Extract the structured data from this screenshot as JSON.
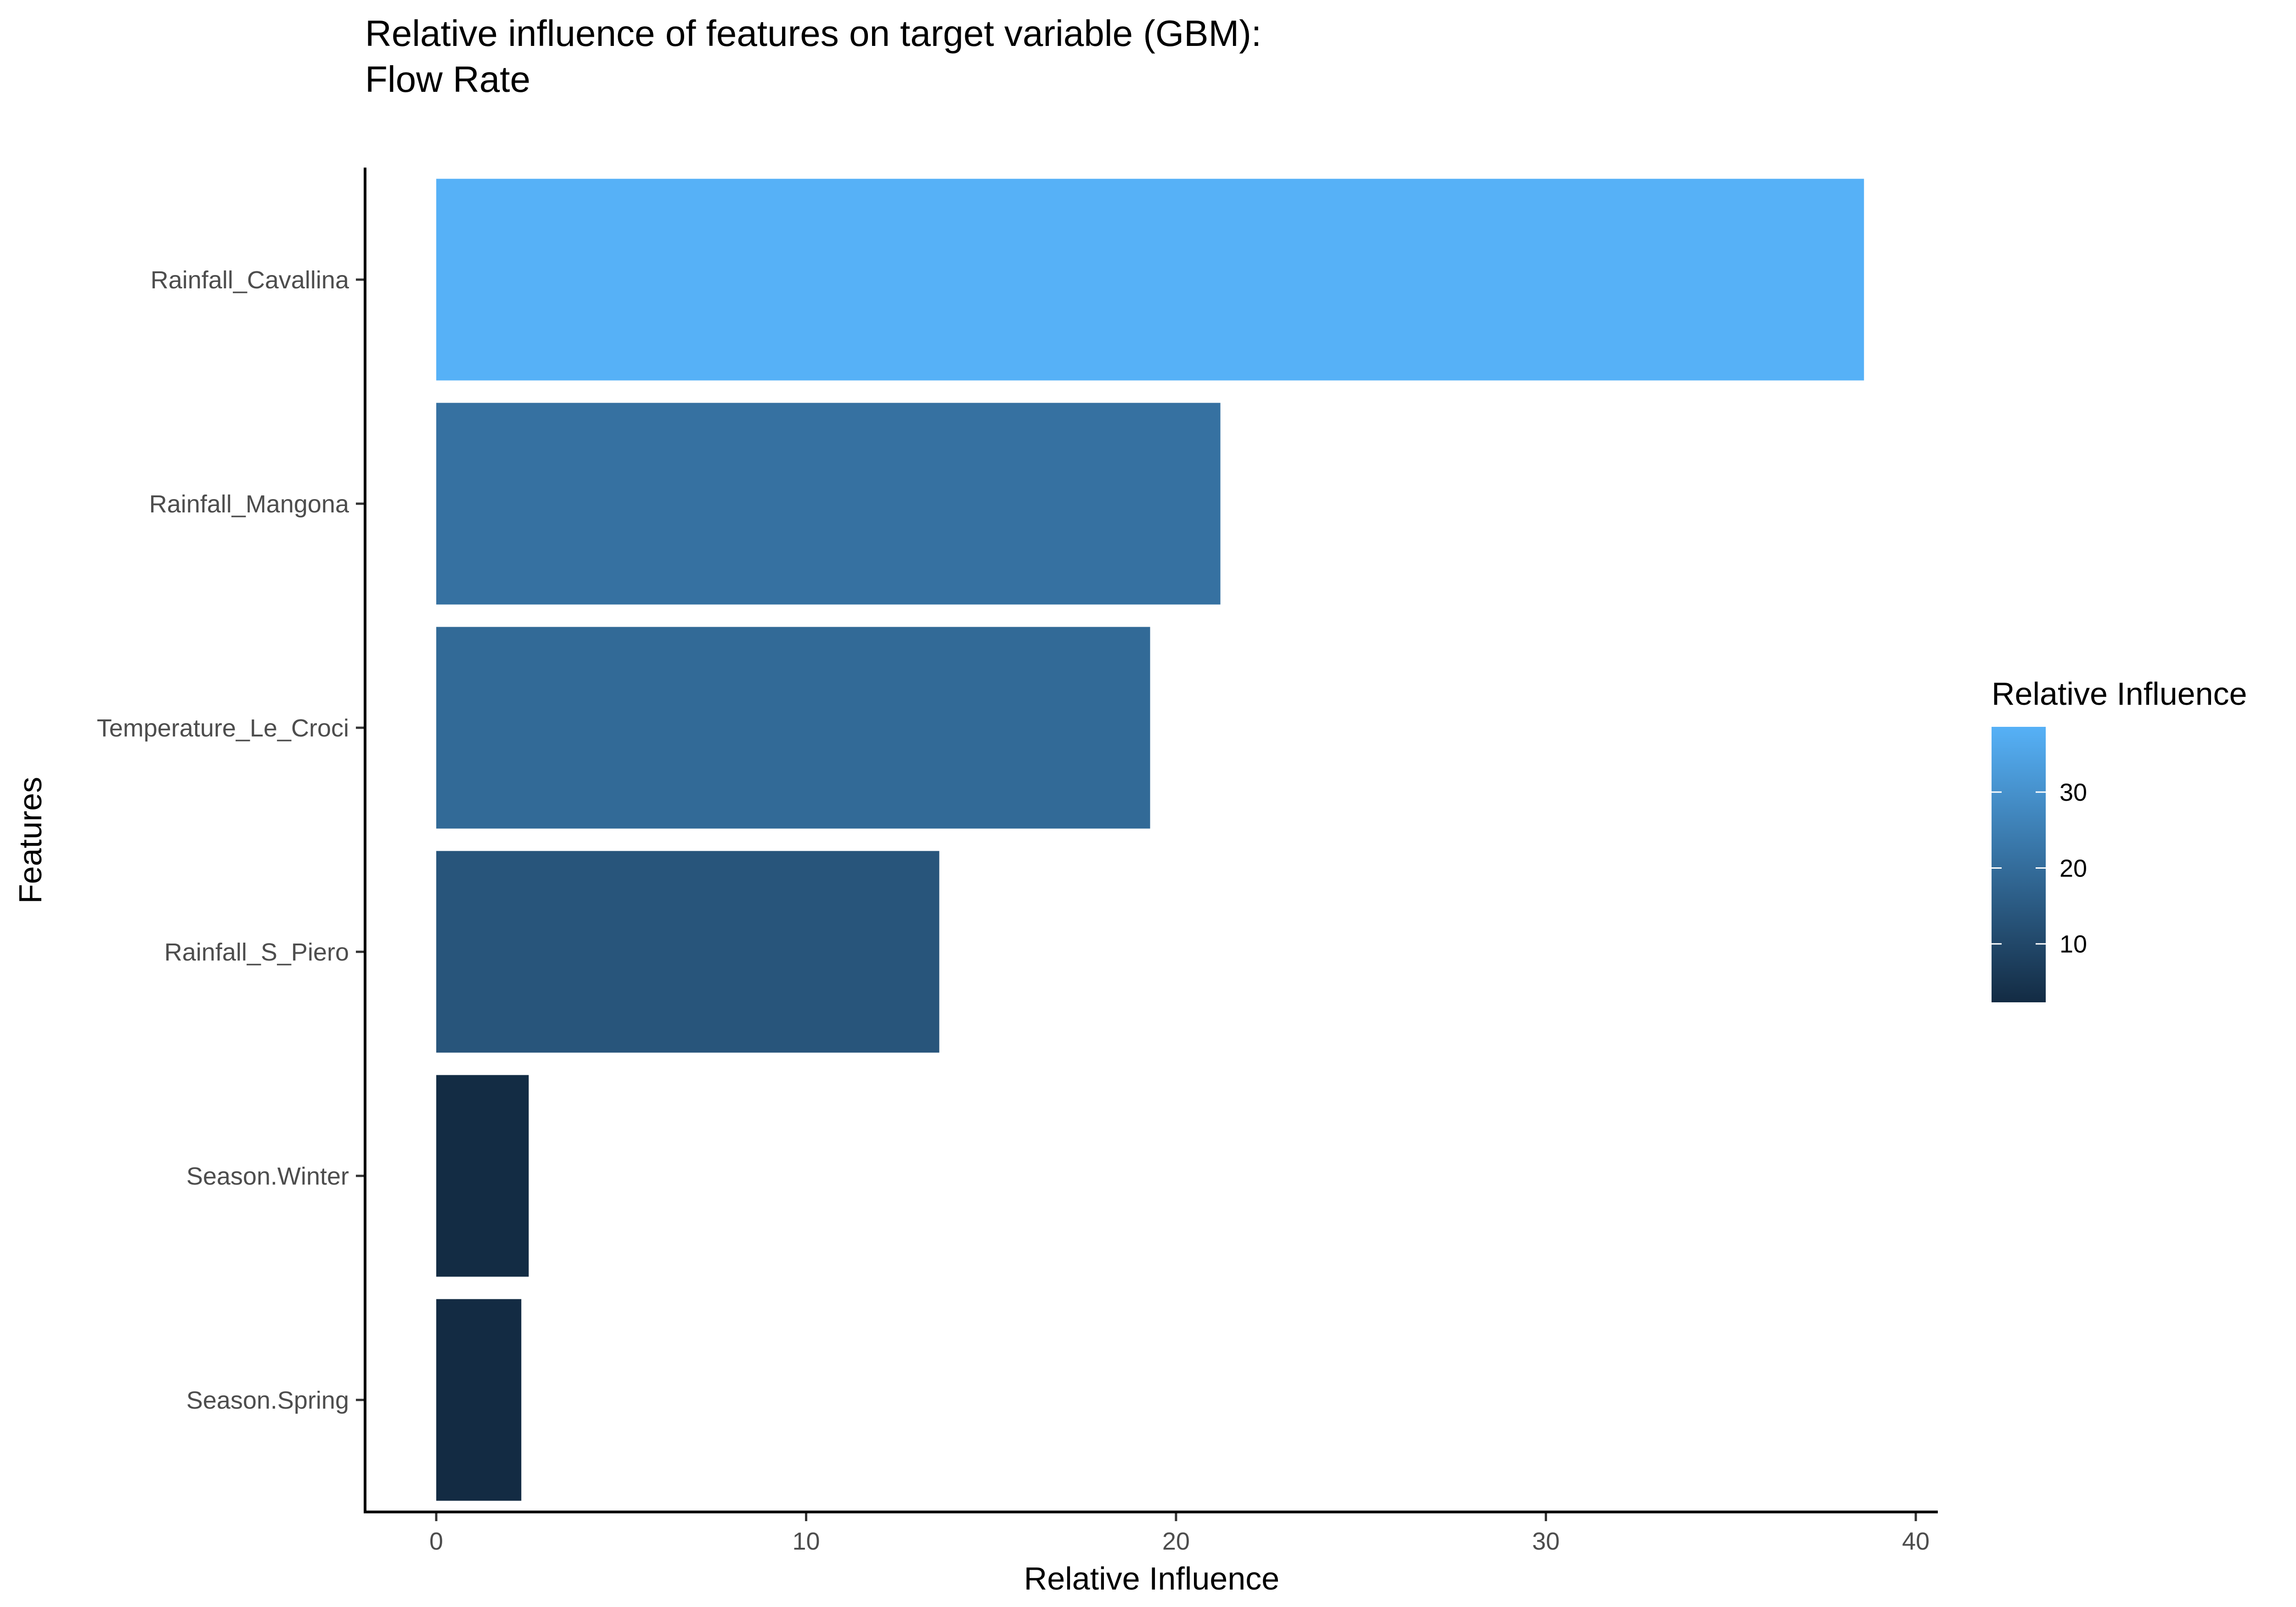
{
  "chart_data": {
    "type": "bar",
    "orientation": "horizontal",
    "title": "Relative influence of features on target variable (GBM):",
    "subtitle": "Flow Rate",
    "xlabel": "Relative Influence",
    "ylabel": "Features",
    "categories": [
      "Rainfall_Cavallina",
      "Rainfall_Mangona",
      "Temperature_Le_Croci",
      "Rainfall_S_Piero",
      "Season.Winter",
      "Season.Spring"
    ],
    "values": [
      38.6,
      21.2,
      19.3,
      13.6,
      2.5,
      2.3
    ],
    "xlim": [
      0,
      40
    ],
    "xticks": [
      "0",
      "10",
      "20",
      "30",
      "40"
    ],
    "grid": false,
    "legend": {
      "title": "Relative Influence",
      "placement": "right",
      "type": "colorbar",
      "range": [
        2.3,
        38.6
      ],
      "ticks": [
        "10",
        "20",
        "30"
      ],
      "color_low": "#132B43",
      "color_high": "#56B1F7"
    }
  }
}
